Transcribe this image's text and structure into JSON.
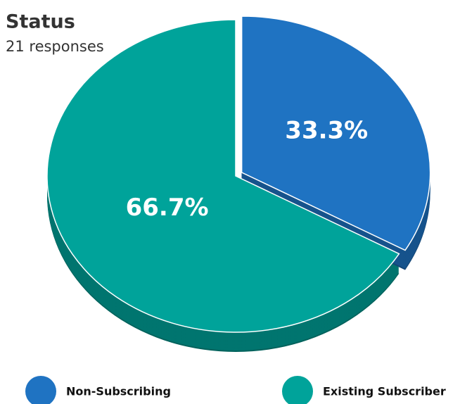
{
  "chart_data": {
    "type": "pie",
    "title": "Status",
    "subtitle": "21 responses",
    "categories": [
      "Non-Subscribing",
      "Existing Subscriber"
    ],
    "values": [
      33.3,
      66.7
    ],
    "value_labels": [
      "33.3%",
      "66.7%"
    ],
    "colors": [
      "#1f73c2",
      "#00a39a"
    ]
  }
}
